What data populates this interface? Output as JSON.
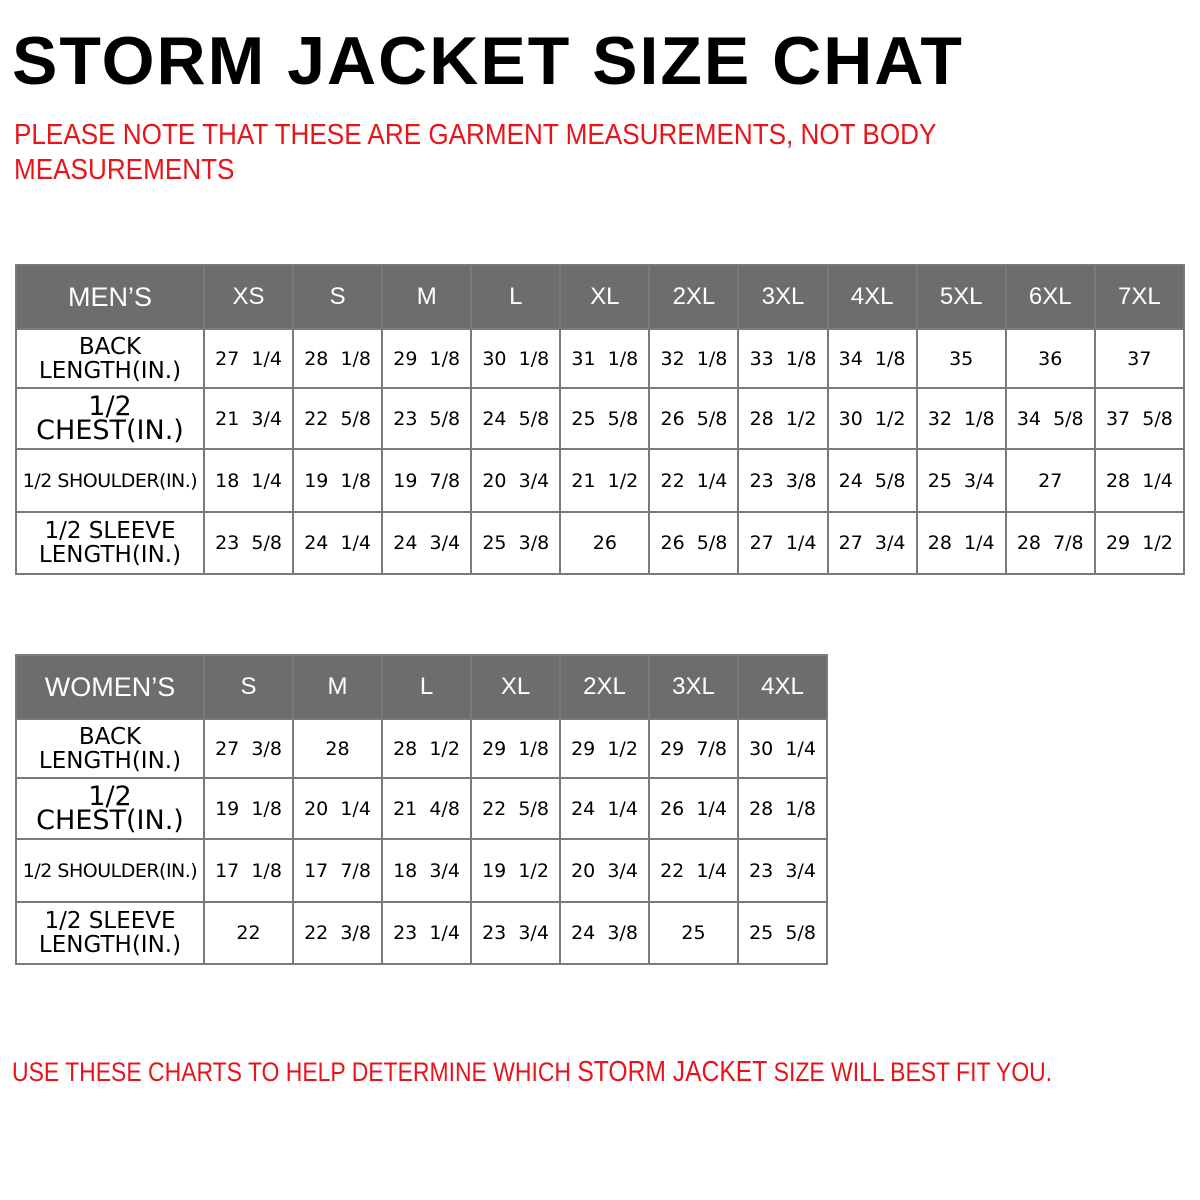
{
  "title": "STORM JACKET SIZE CHAT",
  "note": [
    "PLEASE NOTE THAT THESE ARE GARMENT MEASUREMENTS, NOT BODY",
    "MEASUREMENTS"
  ],
  "colors": {
    "header_bg": "#6d6d6d",
    "note_red": "#e8141b"
  },
  "mens": {
    "label": "MEN’S",
    "sizes": [
      "XS",
      "S",
      "M",
      "L",
      "XL",
      "2XL",
      "3XL",
      "4XL",
      "5XL",
      "6XL",
      "7XL"
    ],
    "rows": [
      {
        "label": "BACK LENGTH(IN.)",
        "values": [
          "27  1/4",
          "28  1/8",
          "29  1/8",
          "30  1/8",
          "31  1/8",
          "32  1/8",
          "33  1/8",
          "34  1/8",
          "35",
          "36",
          "37"
        ]
      },
      {
        "label": "1/2  CHEST(IN.)",
        "values": [
          "21  3/4",
          "22  5/8",
          "23  5/8",
          "24  5/8",
          "25  5/8",
          "26  5/8",
          "28  1/2",
          "30  1/2",
          "32  1/8",
          "34  5/8",
          "37  5/8"
        ]
      },
      {
        "label": "1/2  SHOULDER(IN.)",
        "values": [
          "18  1/4",
          "19  1/8",
          "19  7/8",
          "20  3/4",
          "21  1/2",
          "22  1/4",
          "23  3/8",
          "24  5/8",
          "25  3/4",
          "27",
          "28  1/4"
        ]
      },
      {
        "label": "1/2  SLEEVE LENGTH(IN.)",
        "values": [
          "23  5/8",
          "24  1/4",
          "24  3/4",
          "25  3/8",
          "26",
          "26  5/8",
          "27  1/4",
          "27  3/4",
          "28  1/4",
          "28  7/8",
          "29  1/2"
        ]
      }
    ]
  },
  "womens": {
    "label": "WOMEN’S",
    "sizes": [
      "S",
      "M",
      "L",
      "XL",
      "2XL",
      "3XL",
      "4XL"
    ],
    "rows": [
      {
        "label": "BACK LENGTH(IN.)",
        "values": [
          "27  3/8",
          "28",
          "28  1/2",
          "29  1/8",
          "29  1/2",
          "29  7/8",
          "30  1/4"
        ]
      },
      {
        "label": "1/2  CHEST(IN.)",
        "values": [
          "19  1/8",
          "20  1/4",
          "21  4/8",
          "22  5/8",
          "24  1/4",
          "26  1/4",
          "28  1/8"
        ]
      },
      {
        "label": "1/2  SHOULDER(IN.)",
        "values": [
          "17  1/8",
          "17  7/8",
          "18  3/4",
          "19  1/2",
          "20  3/4",
          "22  1/4",
          "23  3/4"
        ]
      },
      {
        "label": "1/2  SLEEVE LENGTH(IN.)",
        "values": [
          "22",
          "22  3/8",
          "23  1/4",
          "23  3/4",
          "24  3/8",
          "25",
          "25  5/8"
        ]
      }
    ]
  },
  "footer": {
    "before": "USE THESE CHARTS TO HELP DETERMINE WHICH ",
    "brand": "STORM JACKET",
    "after": "  SIZE WILL BEST FIT YOU."
  }
}
